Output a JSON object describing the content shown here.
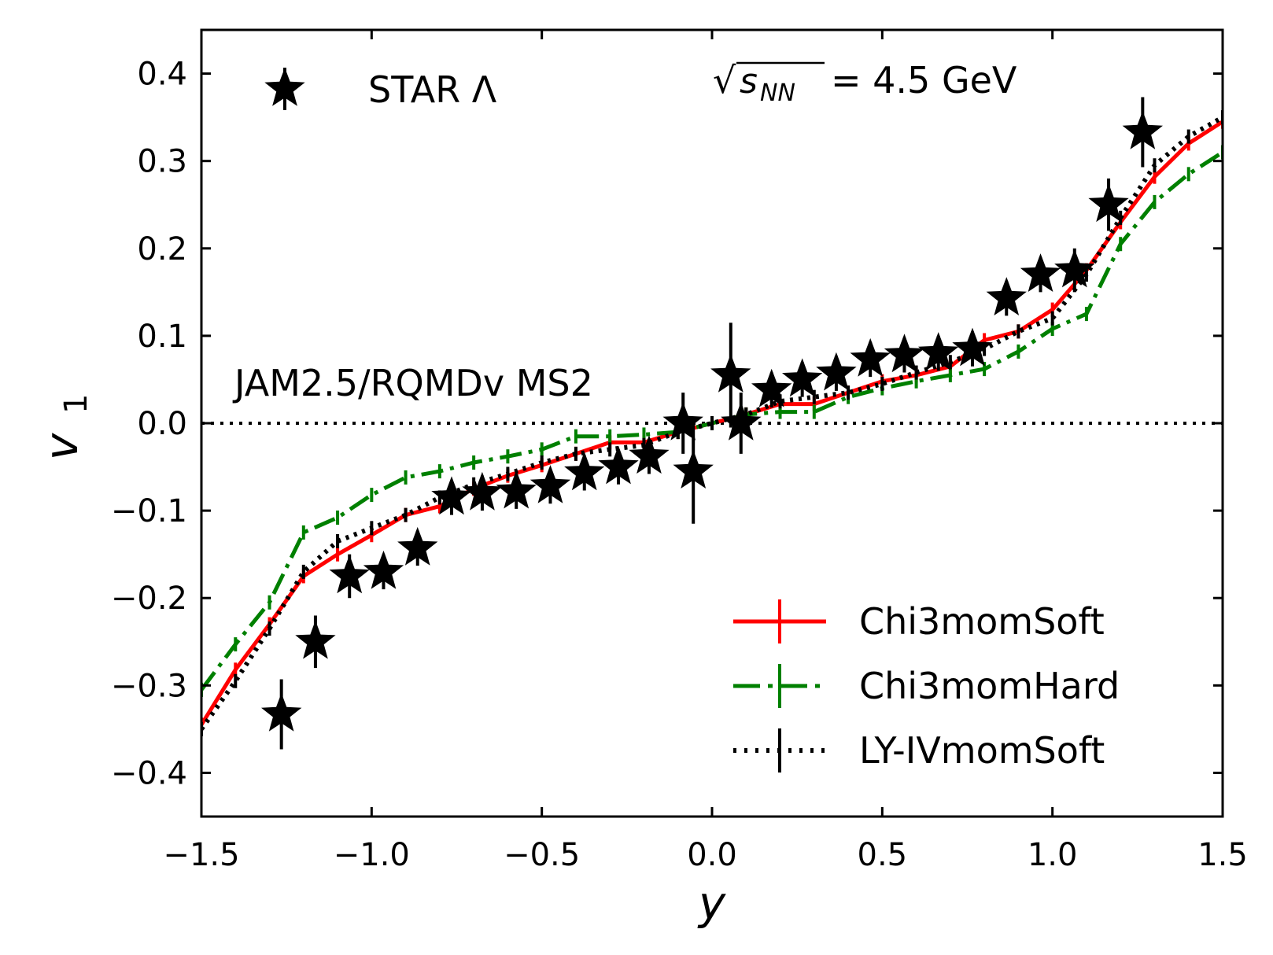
{
  "chart_data": {
    "type": "line",
    "title": "",
    "xlabel": "y",
    "ylabel": "v",
    "ylabel_subscript": "1",
    "xlim": [
      -1.5,
      1.5
    ],
    "ylim": [
      -0.45,
      0.45
    ],
    "xticks": [
      -1.5,
      -1.0,
      -0.5,
      0.0,
      0.5,
      1.0,
      1.5
    ],
    "xtick_labels": [
      "−1.5",
      "−1.0",
      "−0.5",
      "0.0",
      "0.5",
      "1.0",
      "1.5"
    ],
    "yticks": [
      -0.4,
      -0.3,
      -0.2,
      -0.1,
      0.0,
      0.1,
      0.2,
      0.3,
      0.4
    ],
    "ytick_labels": [
      "−0.4",
      "−0.3",
      "−0.2",
      "−0.1",
      "0.0",
      "0.1",
      "0.2",
      "0.3",
      "0.4"
    ],
    "grid": false,
    "reference_line": {
      "y": 0.0,
      "style": "dotted"
    },
    "annotations": {
      "model": "JAM2.5/RQMDv MS2",
      "energy_prefix": "√",
      "energy_symbol": "s",
      "energy_subscript": "NN",
      "energy_value": "= 4.5 GeV"
    },
    "data_series": {
      "name": "STAR Λ",
      "marker": "star",
      "color": "#000000",
      "x": [
        -1.265,
        -1.165,
        -1.065,
        -0.965,
        -0.865,
        -0.765,
        -0.675,
        -0.575,
        -0.475,
        -0.375,
        -0.275,
        -0.185,
        -0.085,
        -0.055,
        0.055,
        0.085,
        0.175,
        0.265,
        0.365,
        0.465,
        0.565,
        0.665,
        0.765,
        0.865,
        0.965,
        1.065,
        1.165,
        1.265
      ],
      "y": [
        -0.333,
        -0.25,
        -0.175,
        -0.17,
        -0.143,
        -0.085,
        -0.08,
        -0.078,
        -0.072,
        -0.057,
        -0.05,
        -0.038,
        0.0,
        -0.055,
        0.055,
        0.0,
        0.038,
        0.05,
        0.057,
        0.073,
        0.078,
        0.08,
        0.085,
        0.143,
        0.17,
        0.175,
        0.25,
        0.333
      ],
      "yerr": [
        0.04,
        0.03,
        0.025,
        0.02,
        0.02,
        0.02,
        0.02,
        0.02,
        0.02,
        0.02,
        0.02,
        0.02,
        0.035,
        0.06,
        0.06,
        0.035,
        0.02,
        0.02,
        0.02,
        0.02,
        0.02,
        0.02,
        0.02,
        0.02,
        0.02,
        0.025,
        0.03,
        0.04
      ]
    },
    "series": [
      {
        "name": "Chi3momSoft",
        "color": "#ff0000",
        "style": "solid",
        "x": [
          -1.5,
          -1.4,
          -1.3,
          -1.2,
          -1.1,
          -1.0,
          -0.9,
          -0.8,
          -0.7,
          -0.6,
          -0.5,
          -0.4,
          -0.3,
          -0.2,
          -0.1,
          0.0,
          0.1,
          0.2,
          0.3,
          0.4,
          0.5,
          0.6,
          0.7,
          0.8,
          0.9,
          1.0,
          1.1,
          1.2,
          1.3,
          1.4,
          1.5
        ],
        "values": [
          -0.345,
          -0.282,
          -0.23,
          -0.175,
          -0.15,
          -0.128,
          -0.105,
          -0.095,
          -0.075,
          -0.06,
          -0.048,
          -0.035,
          -0.022,
          -0.022,
          -0.01,
          0.0,
          0.01,
          0.022,
          0.022,
          0.035,
          0.048,
          0.055,
          0.065,
          0.095,
          0.105,
          0.13,
          0.175,
          0.23,
          0.282,
          0.32,
          0.345
        ]
      },
      {
        "name": "Chi3momHard",
        "color": "#008000",
        "style": "dashdot",
        "x": [
          -1.5,
          -1.4,
          -1.3,
          -1.2,
          -1.1,
          -1.0,
          -0.9,
          -0.8,
          -0.7,
          -0.6,
          -0.5,
          -0.4,
          -0.3,
          -0.2,
          -0.1,
          0.0,
          0.1,
          0.2,
          0.3,
          0.4,
          0.5,
          0.6,
          0.7,
          0.8,
          0.9,
          1.0,
          1.1,
          1.2,
          1.3,
          1.4,
          1.5
        ],
        "values": [
          -0.305,
          -0.253,
          -0.205,
          -0.125,
          -0.108,
          -0.082,
          -0.062,
          -0.055,
          -0.045,
          -0.038,
          -0.03,
          -0.015,
          -0.015,
          -0.013,
          -0.01,
          0.0,
          0.01,
          0.013,
          0.013,
          0.03,
          0.04,
          0.048,
          0.055,
          0.062,
          0.082,
          0.108,
          0.125,
          0.205,
          0.253,
          0.285,
          0.31
        ]
      },
      {
        "name": "LY-IVmomSoft",
        "color": "#000000",
        "style": "dotted",
        "x": [
          -1.5,
          -1.4,
          -1.3,
          -1.2,
          -1.1,
          -1.0,
          -0.9,
          -0.8,
          -0.7,
          -0.6,
          -0.5,
          -0.4,
          -0.3,
          -0.2,
          -0.1,
          0.0,
          0.1,
          0.2,
          0.3,
          0.4,
          0.5,
          0.6,
          0.7,
          0.8,
          0.9,
          1.0,
          1.1,
          1.2,
          1.3,
          1.4,
          1.5
        ],
        "values": [
          -0.35,
          -0.295,
          -0.235,
          -0.17,
          -0.135,
          -0.12,
          -0.105,
          -0.085,
          -0.07,
          -0.058,
          -0.045,
          -0.035,
          -0.03,
          -0.025,
          -0.01,
          0.0,
          0.01,
          0.025,
          0.03,
          0.035,
          0.045,
          0.058,
          0.07,
          0.085,
          0.105,
          0.12,
          0.17,
          0.235,
          0.295,
          0.328,
          0.35
        ]
      }
    ],
    "legend_placement": "bottom-right"
  }
}
